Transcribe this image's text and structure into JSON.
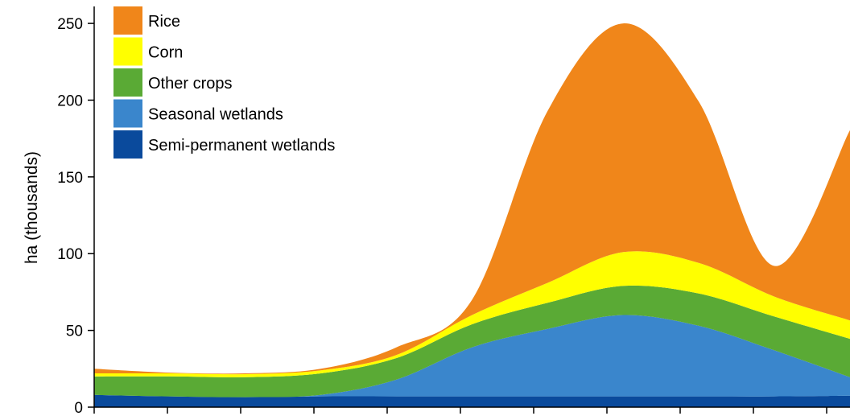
{
  "chart_data": {
    "type": "area",
    "stacked": true,
    "xlabel": "",
    "ylabel": "ha (thousands)",
    "ylim": [
      0,
      260
    ],
    "yticks": [
      0,
      50,
      100,
      150,
      200,
      250
    ],
    "x_tick_count": 11,
    "legend_position": "top-left",
    "grid": false,
    "series": [
      {
        "name": "Semi-permanent wetlands",
        "color": "#0a4a9c",
        "values": [
          8,
          7,
          6.5,
          7,
          7,
          7,
          7,
          7,
          7,
          7,
          7.5
        ]
      },
      {
        "name": "Seasonal wetlands",
        "color": "#3a86cc",
        "values": [
          0,
          0,
          0,
          1,
          11,
          32,
          44,
          53,
          46,
          30,
          12
        ]
      },
      {
        "name": "Other crops",
        "color": "#5aaa35",
        "values": [
          12,
          13,
          13,
          14,
          14,
          15,
          17,
          19,
          21,
          22,
          25
        ]
      },
      {
        "name": "Corn",
        "color": "#ffff00",
        "values": [
          2,
          2,
          2,
          2,
          2,
          6,
          13,
          22,
          20,
          13,
          12
        ]
      },
      {
        "name": "Rice",
        "color": "#f0861a",
        "values": [
          3,
          0.5,
          0.5,
          1,
          5,
          10,
          112,
          149,
          105,
          20,
          124
        ]
      }
    ]
  }
}
